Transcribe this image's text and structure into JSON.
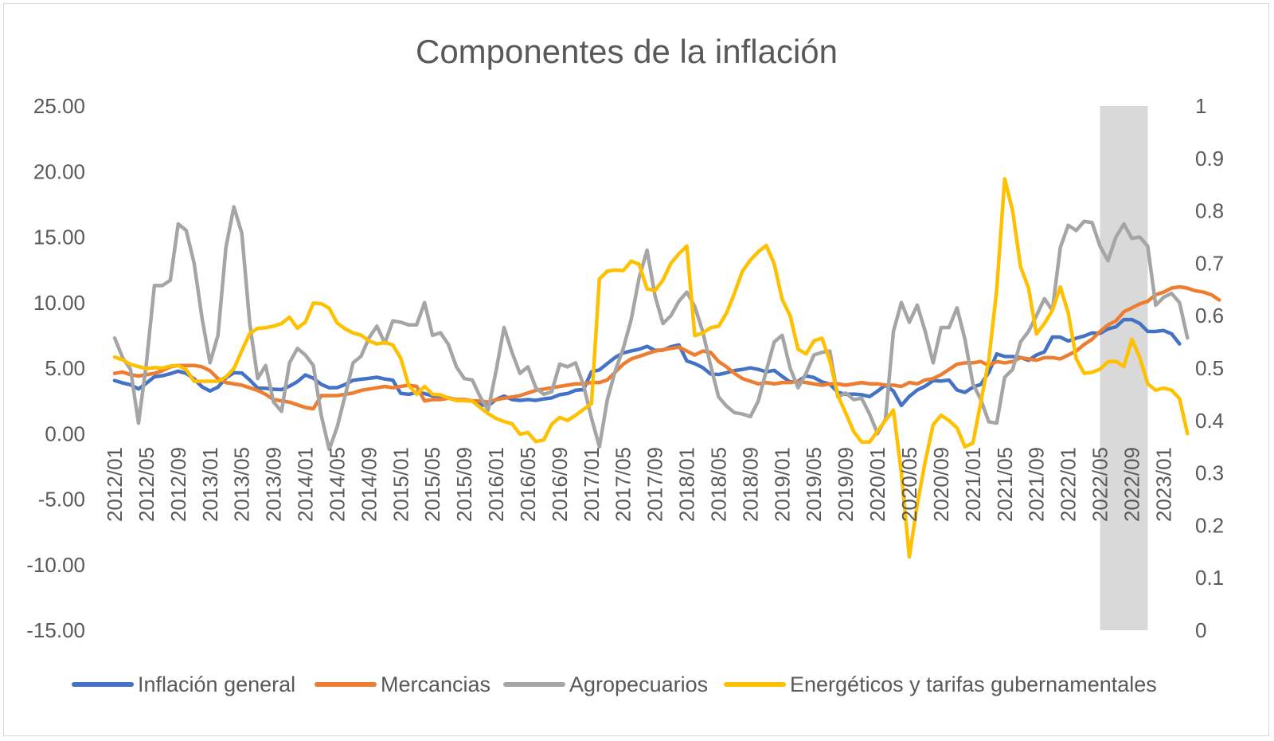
{
  "chart_data": {
    "type": "line",
    "title": "Componentes de la inflación",
    "xlabel": "",
    "ylabel": "",
    "x_tick_labels": [
      "2012/01",
      "2012/05",
      "2012/09",
      "2013/01",
      "2013/05",
      "2013/09",
      "2014/01",
      "2014/05",
      "2014/09",
      "2015/01",
      "2015/05",
      "2015/09",
      "2016/01",
      "2016/05",
      "2016/09",
      "2017/01",
      "2017/05",
      "2017/09",
      "2018/01",
      "2018/05",
      "2018/09",
      "2019/01",
      "2019/05",
      "2019/09",
      "2020/01",
      "2020/05",
      "2020/09",
      "2021/01",
      "2021/05",
      "2021/09",
      "2022/01",
      "2022/05",
      "2022/09",
      "2023/01"
    ],
    "x_start": "2012/01",
    "x_frequency": "monthly",
    "y_left": {
      "min": -15,
      "max": 25,
      "step": 5,
      "tick_labels": [
        "-15.00",
        "-10.00",
        "-5.00",
        "0.00",
        "5.00",
        "10.00",
        "15.00",
        "20.00",
        "25.00"
      ]
    },
    "y_right": {
      "min": 0,
      "max": 1,
      "step": 0.1,
      "tick_labels": [
        "0",
        "0.1",
        "0.2",
        "0.3",
        "0.4",
        "0.5",
        "0.6",
        "0.7",
        "0.8",
        "0.9",
        "1"
      ]
    },
    "shaded_band": {
      "from": "2022/05",
      "to": "2022/11",
      "axis": "right",
      "color": "#d9d9d9"
    },
    "grid": false,
    "legend_position": "bottom",
    "series": [
      {
        "name": "Inflación general",
        "color": "#4472c4",
        "axis": "left",
        "values": [
          4.05,
          3.87,
          3.73,
          3.41,
          3.85,
          4.34,
          4.42,
          4.57,
          4.77,
          4.6,
          4.18,
          3.57,
          3.25,
          3.55,
          4.25,
          4.65,
          4.63,
          4.09,
          3.47,
          3.46,
          3.39,
          3.36,
          3.62,
          3.97,
          4.48,
          4.23,
          3.76,
          3.5,
          3.51,
          3.75,
          4.07,
          4.15,
          4.22,
          4.3,
          4.17,
          4.08,
          3.07,
          3.0,
          3.14,
          3.06,
          2.88,
          2.87,
          2.74,
          2.59,
          2.52,
          2.48,
          2.21,
          2.13,
          2.61,
          2.87,
          2.6,
          2.54,
          2.6,
          2.54,
          2.65,
          2.73,
          2.97,
          3.06,
          3.31,
          3.36,
          4.72,
          4.86,
          5.35,
          5.82,
          6.16,
          6.31,
          6.44,
          6.66,
          6.35,
          6.37,
          6.63,
          6.77,
          5.55,
          5.34,
          5.04,
          4.55,
          4.51,
          4.65,
          4.81,
          4.9,
          5.02,
          4.9,
          4.72,
          4.83,
          4.37,
          3.94,
          4.0,
          4.41,
          4.28,
          3.95,
          3.78,
          3.16,
          3.0,
          3.02,
          2.97,
          2.83,
          3.24,
          3.7,
          3.25,
          2.15,
          2.84,
          3.33,
          3.62,
          4.05,
          4.01,
          4.09,
          3.33,
          3.15,
          3.54,
          3.76,
          4.67,
          6.08,
          5.89,
          5.88,
          5.81,
          5.59,
          6.0,
          6.24,
          7.37,
          7.36,
          7.07,
          7.28,
          7.45,
          7.68,
          7.65,
          7.99,
          8.15,
          8.7,
          8.7,
          8.41,
          7.8,
          7.8,
          7.87,
          7.62,
          6.85
        ]
      },
      {
        "name": "Mercancias",
        "color": "#ed7d31",
        "axis": "left",
        "values": [
          4.6,
          4.7,
          4.5,
          4.4,
          4.5,
          4.6,
          4.8,
          5.1,
          5.2,
          5.2,
          5.2,
          5.1,
          4.8,
          4.2,
          3.9,
          3.8,
          3.7,
          3.5,
          3.3,
          3.0,
          2.6,
          2.5,
          2.4,
          2.2,
          2.0,
          1.9,
          2.9,
          2.9,
          2.9,
          3.0,
          3.1,
          3.3,
          3.4,
          3.5,
          3.6,
          3.5,
          3.6,
          3.7,
          3.6,
          2.5,
          2.6,
          2.6,
          2.7,
          2.6,
          2.6,
          2.5,
          2.5,
          2.4,
          2.6,
          2.7,
          2.8,
          2.9,
          3.1,
          3.3,
          3.4,
          3.5,
          3.6,
          3.7,
          3.8,
          3.8,
          3.9,
          3.9,
          4.1,
          4.7,
          5.3,
          5.7,
          5.9,
          6.1,
          6.3,
          6.4,
          6.5,
          6.6,
          6.3,
          6.0,
          6.3,
          6.2,
          5.5,
          5.1,
          4.6,
          4.2,
          4.0,
          3.8,
          3.9,
          3.8,
          3.9,
          3.9,
          4.0,
          3.9,
          3.8,
          3.7,
          3.8,
          3.8,
          3.7,
          3.8,
          3.9,
          3.8,
          3.8,
          3.7,
          3.7,
          3.6,
          3.9,
          3.8,
          4.1,
          4.2,
          4.5,
          4.9,
          5.3,
          5.4,
          5.4,
          5.5,
          5.2,
          5.5,
          5.4,
          5.5,
          5.8,
          5.7,
          5.6,
          5.8,
          5.8,
          5.7,
          6.0,
          6.3,
          6.8,
          7.2,
          7.8,
          8.3,
          8.6,
          9.3,
          9.6,
          9.9,
          10.1,
          10.6,
          10.8,
          11.1,
          11.2,
          11.1,
          10.9,
          10.8,
          10.6,
          10.2
        ]
      },
      {
        "name": "Agropecuarios",
        "color": "#a5a5a5",
        "axis": "left",
        "values": [
          7.3,
          5.8,
          4.9,
          0.8,
          5.4,
          11.3,
          11.3,
          11.7,
          16.0,
          15.5,
          13.0,
          8.8,
          5.4,
          7.5,
          14.2,
          17.3,
          15.3,
          8.4,
          4.2,
          5.2,
          2.4,
          1.7,
          5.4,
          6.5,
          6.0,
          5.2,
          1.4,
          -1.2,
          0.5,
          2.9,
          5.4,
          5.9,
          7.3,
          8.2,
          6.9,
          8.6,
          8.5,
          8.3,
          8.3,
          10.0,
          7.5,
          7.7,
          6.8,
          5.1,
          4.2,
          4.1,
          2.8,
          1.8,
          4.8,
          8.1,
          6.2,
          4.6,
          5.1,
          3.5,
          3.0,
          3.2,
          5.3,
          5.1,
          5.4,
          3.7,
          1.2,
          -1.0,
          2.6,
          4.8,
          6.5,
          8.7,
          11.9,
          14.0,
          10.5,
          8.4,
          9.0,
          10.1,
          10.8,
          9.7,
          7.8,
          5.2,
          2.8,
          2.1,
          1.6,
          1.5,
          1.3,
          2.5,
          4.8,
          7.0,
          7.5,
          5.0,
          3.5,
          4.6,
          6.0,
          6.2,
          6.3,
          2.8,
          3.1,
          2.6,
          2.7,
          1.5,
          0.0,
          1.1,
          7.8,
          10.0,
          8.5,
          9.8,
          7.8,
          5.4,
          8.1,
          8.1,
          9.6,
          7.2,
          3.8,
          2.6,
          0.9,
          0.8,
          4.3,
          4.9,
          7.0,
          7.8,
          9.0,
          10.3,
          9.4,
          14.2,
          15.9,
          15.5,
          16.2,
          16.1,
          14.3,
          13.2,
          15.0,
          16.0,
          14.9,
          15.0,
          14.3,
          9.8,
          10.4,
          10.7,
          10.0,
          7.3
        ]
      },
      {
        "name": "Energéticos y tarifas gubernamentales",
        "color": "#ffc000",
        "axis": "right",
        "values": [
          0.521,
          0.516,
          0.507,
          0.503,
          0.499,
          0.501,
          0.5,
          0.504,
          0.505,
          0.497,
          0.475,
          0.475,
          0.475,
          0.475,
          0.483,
          0.499,
          0.533,
          0.566,
          0.576,
          0.577,
          0.58,
          0.585,
          0.597,
          0.576,
          0.588,
          0.624,
          0.623,
          0.614,
          0.586,
          0.575,
          0.567,
          0.563,
          0.552,
          0.546,
          0.549,
          0.544,
          0.519,
          0.467,
          0.45,
          0.465,
          0.45,
          0.449,
          0.443,
          0.438,
          0.438,
          0.437,
          0.425,
          0.413,
          0.404,
          0.398,
          0.394,
          0.374,
          0.377,
          0.36,
          0.363,
          0.393,
          0.406,
          0.4,
          0.41,
          0.421,
          0.432,
          0.67,
          0.685,
          0.687,
          0.686,
          0.704,
          0.698,
          0.651,
          0.648,
          0.668,
          0.7,
          0.718,
          0.733,
          0.562,
          0.567,
          0.577,
          0.58,
          0.605,
          0.643,
          0.685,
          0.706,
          0.722,
          0.734,
          0.699,
          0.631,
          0.6,
          0.536,
          0.527,
          0.552,
          0.557,
          0.514,
          0.448,
          0.414,
          0.379,
          0.359,
          0.359,
          0.38,
          0.4,
          0.42,
          0.3,
          0.14,
          0.24,
          0.322,
          0.392,
          0.41,
          0.4,
          0.386,
          0.35,
          0.357,
          0.435,
          0.515,
          0.65,
          0.861,
          0.8,
          0.693,
          0.653,
          0.565,
          0.585,
          0.61,
          0.655,
          0.605,
          0.518,
          0.49,
          0.492,
          0.498,
          0.512,
          0.513,
          0.503,
          0.555,
          0.52,
          0.47,
          0.458,
          0.462,
          0.458,
          0.442,
          0.375
        ]
      }
    ]
  }
}
